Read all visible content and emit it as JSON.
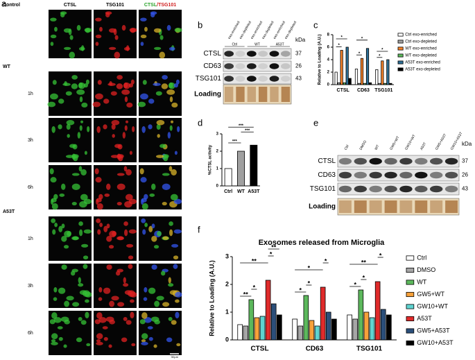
{
  "panel_labels": [
    "a",
    "b",
    "c",
    "d",
    "e",
    "f"
  ],
  "microscopy": {
    "headers": [
      "CTSL",
      "TSG101"
    ],
    "merge": [
      "CTSL",
      "/TSG101"
    ],
    "conditions": [
      "Control",
      "WT",
      "A53T"
    ],
    "times": [
      "1h",
      "3h",
      "6h"
    ],
    "scale_bar": "50μm"
  },
  "blot_b": {
    "lanes": [
      "exo-enriched",
      "exo-depleted",
      "exo-enriched",
      "exo-depleted",
      "exo-enriched",
      "exo-depleted"
    ],
    "groups": [
      "Ctrl",
      "WT",
      "A53T"
    ],
    "unit": "kDa",
    "rows": [
      {
        "label": "CTSL",
        "kda": 37
      },
      {
        "label": "CD63",
        "kda": 26
      },
      {
        "label": "TSG101",
        "kda": 43
      }
    ],
    "loading": "Loading"
  },
  "blot_e": {
    "lanes": [
      "Ctrl",
      "DMSO",
      "WT",
      "GW5+WT",
      "GW10+WT",
      "A53T",
      "GW5+A53T",
      "GW10+A53T"
    ],
    "unit": "kDa",
    "rows": [
      {
        "label": "CTSL",
        "kda": 37
      },
      {
        "label": "CD63",
        "kda": 26
      },
      {
        "label": "TSG101",
        "kda": 43
      }
    ],
    "loading": "Loading"
  },
  "chart_data": [
    {
      "type": "bar",
      "ylabel": "Relative to Loading (A.U.)",
      "categories": [
        "CTSL",
        "CD63",
        "TSG101"
      ],
      "series": [
        {
          "name": "Ctrl exo-enriched",
          "color": "#ffffff",
          "values": [
            2.0,
            2.5,
            2.4
          ]
        },
        {
          "name": "Ctrl exo-depleted",
          "color": "#a0a0a0",
          "values": [
            0.3,
            0.2,
            0.2
          ]
        },
        {
          "name": "WT exo-enriched",
          "color": "#f5822a",
          "values": [
            5.5,
            4.2,
            3.8
          ]
        },
        {
          "name": "WT exo-depleted",
          "color": "#5cb85c",
          "values": [
            0.3,
            0.2,
            0.2
          ]
        },
        {
          "name": "A53T exo-enriched",
          "color": "#2d6f96",
          "values": [
            6.0,
            5.8,
            4.0
          ]
        },
        {
          "name": "A53T exo-depleted",
          "color": "#000000",
          "values": [
            1.0,
            0.3,
            0.2
          ]
        }
      ],
      "ylim": [
        0,
        8
      ],
      "yticks": [
        0,
        2,
        4,
        6,
        8
      ],
      "significance": [
        {
          "label": "*",
          "category": 0,
          "series": [
            0,
            2
          ]
        },
        {
          "label": "*",
          "category": 0,
          "series": [
            0,
            4
          ]
        },
        {
          "label": "*",
          "category": 1,
          "series": [
            0,
            2
          ]
        },
        {
          "label": "*",
          "category": 1,
          "series": [
            0,
            4
          ]
        },
        {
          "label": "*",
          "category": 2,
          "series": [
            0,
            2
          ]
        },
        {
          "label": "*",
          "category": 2,
          "series": [
            0,
            4
          ]
        }
      ]
    },
    {
      "type": "bar",
      "ylabel": "%CTSL activity",
      "categories": [
        "Ctrl",
        "WT",
        "A53T"
      ],
      "values": [
        1.0,
        2.0,
        2.35
      ],
      "colors": [
        "#ffffff",
        "#a0a0a0",
        "#000000"
      ],
      "ylim": [
        0,
        3
      ],
      "yticks": [
        0,
        1,
        2,
        3
      ],
      "significance": [
        {
          "label": "***",
          "categories": [
            0,
            1
          ]
        },
        {
          "label": "***",
          "categories": [
            1,
            2
          ]
        },
        {
          "label": "***",
          "categories": [
            0,
            2
          ]
        }
      ]
    },
    {
      "type": "bar",
      "title": "Exosomes released from Microglia",
      "ylabel": "Relative to Loading (A.U.)",
      "categories": [
        "CTSL",
        "CD63",
        "TSG101"
      ],
      "series": [
        {
          "name": "Ctrl",
          "color": "#ffffff",
          "values": [
            0.55,
            0.75,
            0.9
          ]
        },
        {
          "name": "DMSO",
          "color": "#a6a6a6",
          "values": [
            0.5,
            0.5,
            0.75
          ]
        },
        {
          "name": "WT",
          "color": "#5cb85c",
          "values": [
            1.45,
            1.6,
            1.8
          ]
        },
        {
          "name": "GW5+WT",
          "color": "#f7a13a",
          "values": [
            0.8,
            0.7,
            1.0
          ]
        },
        {
          "name": "GW10+WT",
          "color": "#5fd3d0",
          "values": [
            0.85,
            0.5,
            0.8
          ]
        },
        {
          "name": "A53T",
          "color": "#e02b2b",
          "values": [
            2.15,
            1.9,
            2.1
          ]
        },
        {
          "name": "GW5+A53T",
          "color": "#2b4f7a",
          "values": [
            1.3,
            1.0,
            1.1
          ]
        },
        {
          "name": "GW10+A53T",
          "color": "#000000",
          "values": [
            0.9,
            0.75,
            0.9
          ]
        }
      ],
      "ylim": [
        0,
        3
      ],
      "yticks": [
        0,
        1,
        2,
        3
      ],
      "significance": [
        {
          "label": "**",
          "category": 0,
          "series": [
            0,
            2
          ]
        },
        {
          "label": "*",
          "category": 0,
          "series": [
            2,
            3
          ]
        },
        {
          "label": "**",
          "category": 0,
          "series": [
            0,
            5
          ]
        },
        {
          "label": "*",
          "category": 0,
          "series": [
            5,
            6
          ]
        },
        {
          "label": "**",
          "category": 0,
          "series": [
            5,
            7
          ]
        },
        {
          "label": "*",
          "category": 1,
          "series": [
            0,
            2
          ]
        },
        {
          "label": "*",
          "category": 1,
          "series": [
            2,
            3
          ]
        },
        {
          "label": "*",
          "category": 1,
          "series": [
            0,
            5
          ]
        },
        {
          "label": "*",
          "category": 1,
          "series": [
            5,
            6
          ]
        },
        {
          "label": "*",
          "category": 2,
          "series": [
            0,
            2
          ]
        },
        {
          "label": "*",
          "category": 2,
          "series": [
            2,
            3
          ]
        },
        {
          "label": "**",
          "category": 2,
          "series": [
            0,
            5
          ]
        },
        {
          "label": "*",
          "category": 2,
          "series": [
            5,
            6
          ]
        }
      ]
    }
  ]
}
